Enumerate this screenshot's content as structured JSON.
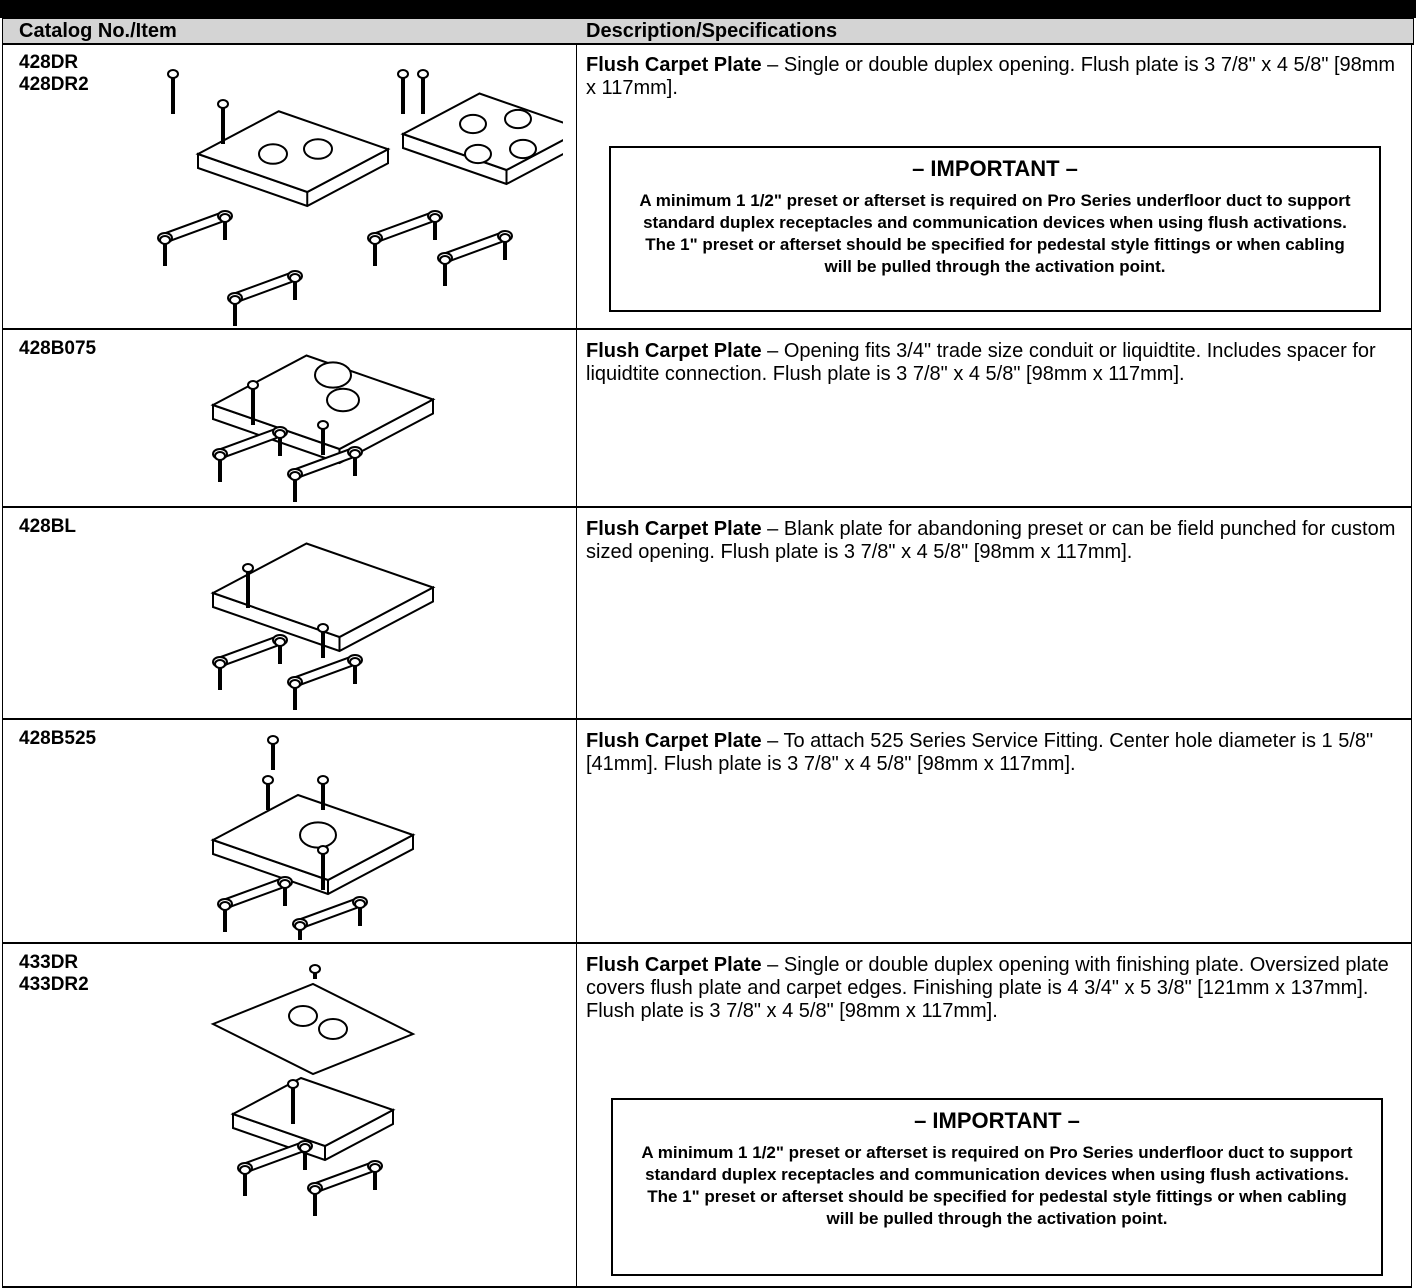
{
  "header": {
    "columns": [
      "Catalog No./Item",
      "Description/Specifications"
    ]
  },
  "rows": [
    {
      "items": [
        "428DR",
        "428DR2"
      ],
      "title": "Flush Carpet Plate",
      "text": "– Single or double duplex opening. Flush plate is 3 7/8\" x 4 5/8\" [98mm x 117mm].",
      "important": {
        "title": "– IMPORTANT –",
        "text": "A minimum 1 1/2\" preset or afterset is required on Pro Series underfloor duct to support standard duplex receptacles and communication devices when using flush activations. The 1\" preset or afterset should be specified for pedestal style fittings or when cabling will be pulled through the activation point."
      }
    },
    {
      "items": [
        "428B075"
      ],
      "title": "Flush Carpet Plate",
      "text": "– Opening fits 3/4\" trade size conduit or liquidtite. Includes spacer for liquidtite connection. Flush plate is 3 7/8\" x 4 5/8\" [98mm x 117mm]."
    },
    {
      "items": [
        "428BL"
      ],
      "title": "Flush Carpet Plate",
      "text": "– Blank plate for abandoning preset or can be field punched for custom sized opening. Flush plate is 3 7/8\" x 4 5/8\" [98mm x 117mm]."
    },
    {
      "items": [
        "428B525"
      ],
      "title": "Flush Carpet Plate",
      "text": "– To attach 525 Series Service Fitting. Center hole diameter is 1 5/8\" [41mm]. Flush plate is 3 7/8\" x 4 5/8\" [98mm x 117mm]."
    },
    {
      "items": [
        "433DR",
        "433DR2"
      ],
      "title": "Flush Carpet Plate",
      "text": "– Single or double duplex opening with finishing plate. Oversized plate covers flush plate and carpet edges. Finishing plate is 4 3/4\" x 5 3/8\" [121mm x 137mm]. Flush plate is 3 7/8\" x 4 5/8\" [98mm x 117mm].",
      "important": {
        "title": "– IMPORTANT –",
        "text": "A minimum 1 1/2\" preset or afterset is required on Pro Series underfloor duct to support standard duplex receptacles and communication devices when using flush activations. The 1\" preset or afterset should be specified for pedestal style fittings or when cabling will be pulled through the activation point."
      }
    }
  ]
}
